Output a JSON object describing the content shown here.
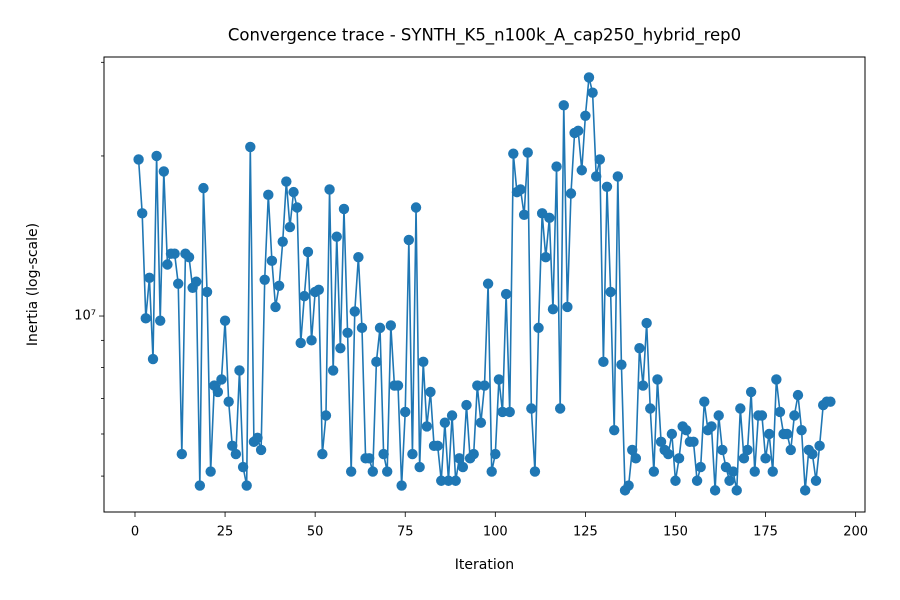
{
  "chart_data": {
    "type": "line",
    "title": "Convergence trace - SYNTH_K5_n100k_A_cap250_hybrid_rep0",
    "xlabel": "Iteration",
    "ylabel": "Inertia (log-scale)",
    "x": [
      1,
      2,
      3,
      4,
      5,
      6,
      7,
      8,
      9,
      10,
      11,
      12,
      13,
      14,
      15,
      16,
      17,
      18,
      19,
      20,
      21,
      22,
      23,
      24,
      25,
      26,
      27,
      28,
      29,
      30,
      31,
      32,
      33,
      34,
      35,
      36,
      37,
      38,
      39,
      40,
      41,
      42,
      43,
      44,
      45,
      46,
      47,
      48,
      49,
      50,
      51,
      52,
      53,
      54,
      55,
      56,
      57,
      58,
      59,
      60,
      61,
      62,
      63,
      64,
      65,
      66,
      67,
      68,
      69,
      70,
      71,
      72,
      73,
      74,
      75,
      76,
      77,
      78,
      79,
      80,
      81,
      82,
      83,
      84,
      85,
      86,
      87,
      88,
      89,
      90,
      91,
      92,
      93,
      94,
      95,
      96,
      97,
      98,
      99,
      100,
      101,
      102,
      103,
      104,
      105,
      106,
      107,
      108,
      109,
      110,
      111,
      112,
      113,
      114,
      115,
      116,
      117,
      118,
      119,
      120,
      121,
      122,
      123,
      124,
      125,
      126,
      127,
      128,
      129,
      130,
      131,
      132,
      133,
      134,
      135,
      136,
      137,
      138,
      139,
      140,
      141,
      142,
      143,
      144,
      145,
      146,
      147,
      148,
      149,
      150,
      151,
      152,
      153,
      154,
      155,
      156,
      157,
      158,
      159,
      160,
      161,
      162,
      163,
      164,
      165,
      166,
      167,
      168,
      169,
      170,
      171,
      172,
      173,
      174,
      175,
      176,
      177,
      178,
      179,
      180,
      181,
      182,
      183,
      184,
      185,
      186,
      187,
      188,
      189,
      190,
      191,
      192,
      193
    ],
    "series": [
      {
        "name": "Inertia",
        "color": "#1f77b4",
        "values": [
          19700000,
          15600000,
          9900000,
          11800000,
          8300000,
          20000000,
          9800000,
          18700000,
          12500000,
          13100000,
          13100000,
          11500000,
          5500000,
          13100000,
          12900000,
          11300000,
          11600000,
          4800000,
          17400000,
          11100000,
          5100000,
          7400000,
          7200000,
          7600000,
          9800000,
          6900000,
          5700000,
          5500000,
          7900000,
          5200000,
          4800000,
          20800000,
          5800000,
          5900000,
          5600000,
          11700000,
          16900000,
          12700000,
          10400000,
          11400000,
          13800000,
          17900000,
          14700000,
          17100000,
          16000000,
          8900000,
          10900000,
          13200000,
          9000000,
          11100000,
          11200000,
          5500000,
          6500000,
          17300000,
          7900000,
          14100000,
          8700000,
          15900000,
          9300000,
          5100000,
          10200000,
          12900000,
          9500000,
          5400000,
          5400000,
          5100000,
          8200000,
          9500000,
          5500000,
          5100000,
          9600000,
          7400000,
          7400000,
          4800000,
          6600000,
          13900000,
          5500000,
          16000000,
          5200000,
          8200000,
          6200000,
          7200000,
          5700000,
          5700000,
          4900000,
          6300000,
          4900000,
          6500000,
          4900000,
          5400000,
          5200000,
          6800000,
          5400000,
          5500000,
          7400000,
          6300000,
          7400000,
          11500000,
          5100000,
          5500000,
          7600000,
          6600000,
          11000000,
          6600000,
          20200000,
          17100000,
          17300000,
          15500000,
          20300000,
          6700000,
          5100000,
          9500000,
          15600000,
          12900000,
          15300000,
          10300000,
          19100000,
          6700000,
          24900000,
          10400000,
          17000000,
          22100000,
          22300000,
          18800000,
          23800000,
          28100000,
          26300000,
          18300000,
          19700000,
          8200000,
          17500000,
          11100000,
          6100000,
          18300000,
          8100000,
          4700000,
          4800000,
          5600000,
          5400000,
          8700000,
          7400000,
          9700000,
          6700000,
          5100000,
          7600000,
          5800000,
          5600000,
          5500000,
          6000000,
          4900000,
          5400000,
          6200000,
          6100000,
          5800000,
          5800000,
          4900000,
          5200000,
          6900000,
          6100000,
          6200000,
          4700000,
          6500000,
          5600000,
          5200000,
          4900000,
          5100000,
          4700000,
          6700000,
          5400000,
          5600000,
          7200000,
          5100000,
          6500000,
          6500000,
          5400000,
          6000000,
          5100000,
          7600000,
          6600000,
          6000000,
          6000000,
          5600000,
          6500000,
          7100000,
          6100000,
          4700000,
          5600000,
          5500000,
          4900000,
          5700000,
          6800000,
          6900000,
          6900000
        ]
      }
    ],
    "xlim": [
      -8.6,
      202.6
    ],
    "xticks": [
      0,
      25,
      50,
      75,
      100,
      125,
      150,
      175,
      200
    ],
    "ylim": [
      4280000,
      30700000
    ],
    "ylog": true,
    "yticks": [
      {
        "value": 10000000,
        "label": "10⁷"
      }
    ],
    "yminorticks": [
      5000000,
      6000000,
      7000000,
      8000000,
      9000000,
      20000000,
      30000000
    ],
    "grid": false
  }
}
